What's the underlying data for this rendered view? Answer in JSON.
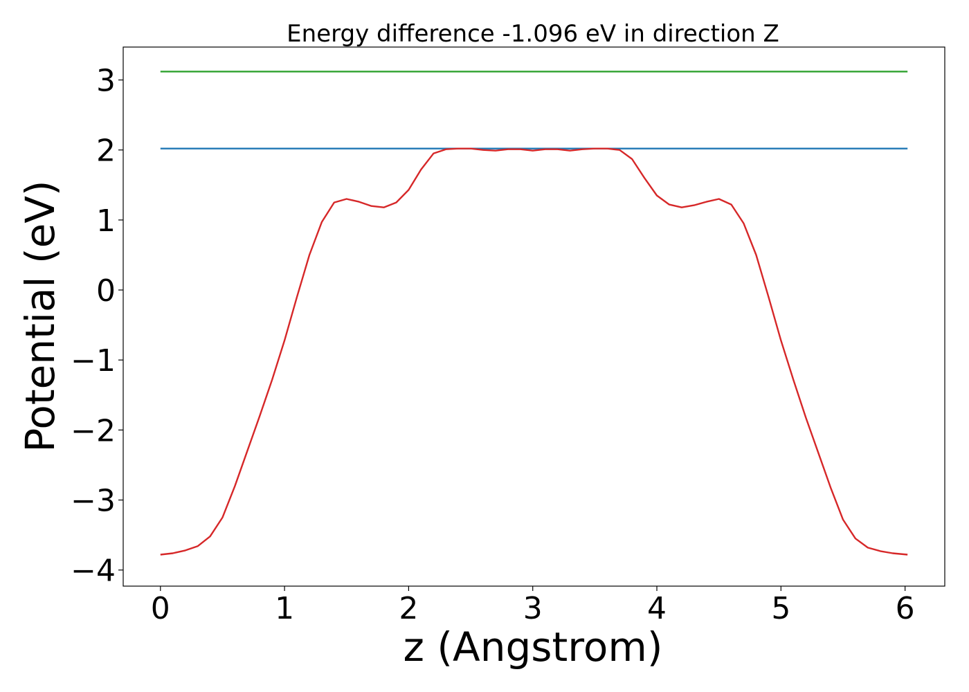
{
  "chart_data": {
    "type": "line",
    "title": "Energy difference -1.096 eV in direction Z",
    "xlabel": "z (Angstrom)",
    "ylabel": "Potential (eV)",
    "xlim": [
      -0.3,
      6.32
    ],
    "ylim": [
      -4.23,
      3.47
    ],
    "xticks": [
      0,
      1,
      2,
      3,
      4,
      5,
      6
    ],
    "xtick_labels": [
      "0",
      "1",
      "2",
      "3",
      "4",
      "5",
      "6"
    ],
    "yticks": [
      -4,
      -3,
      -2,
      -1,
      0,
      1,
      2,
      3
    ],
    "ytick_labels": [
      "−4",
      "−3",
      "−2",
      "−1",
      "0",
      "1",
      "2",
      "3"
    ],
    "grid": false,
    "series": [
      {
        "color": "#2ca02c",
        "x": [
          0,
          6.02
        ],
        "y": [
          3.12,
          3.12
        ]
      },
      {
        "color": "#1f77b4",
        "x": [
          0,
          6.02
        ],
        "y": [
          2.02,
          2.02
        ]
      },
      {
        "color": "#d62728",
        "x": [
          0,
          0.1,
          0.2,
          0.3,
          0.4,
          0.5,
          0.6,
          0.7,
          0.8,
          0.9,
          1.0,
          1.1,
          1.2,
          1.3,
          1.4,
          1.5,
          1.6,
          1.7,
          1.8,
          1.9,
          2.0,
          2.1,
          2.2,
          2.3,
          2.4,
          2.5,
          2.6,
          2.7,
          2.8,
          2.9,
          3.0,
          3.1,
          3.2,
          3.3,
          3.4,
          3.5,
          3.6,
          3.7,
          3.8,
          3.9,
          4.0,
          4.1,
          4.2,
          4.3,
          4.4,
          4.5,
          4.6,
          4.7,
          4.8,
          4.9,
          5.0,
          5.1,
          5.2,
          5.3,
          5.4,
          5.5,
          5.6,
          5.7,
          5.8,
          5.9,
          6.02
        ],
        "y": [
          -3.78,
          -3.76,
          -3.72,
          -3.66,
          -3.52,
          -3.25,
          -2.8,
          -2.3,
          -1.8,
          -1.28,
          -0.72,
          -0.1,
          0.5,
          0.97,
          1.25,
          1.3,
          1.26,
          1.2,
          1.18,
          1.25,
          1.43,
          1.72,
          1.95,
          2.01,
          2.02,
          2.02,
          2.0,
          1.99,
          2.01,
          2.01,
          1.99,
          2.01,
          2.01,
          1.99,
          2.01,
          2.02,
          2.02,
          2.0,
          1.87,
          1.6,
          1.35,
          1.22,
          1.18,
          1.21,
          1.26,
          1.3,
          1.22,
          0.95,
          0.5,
          -0.1,
          -0.72,
          -1.28,
          -1.82,
          -2.32,
          -2.82,
          -3.28,
          -3.55,
          -3.68,
          -3.73,
          -3.76,
          -3.78
        ]
      }
    ]
  }
}
